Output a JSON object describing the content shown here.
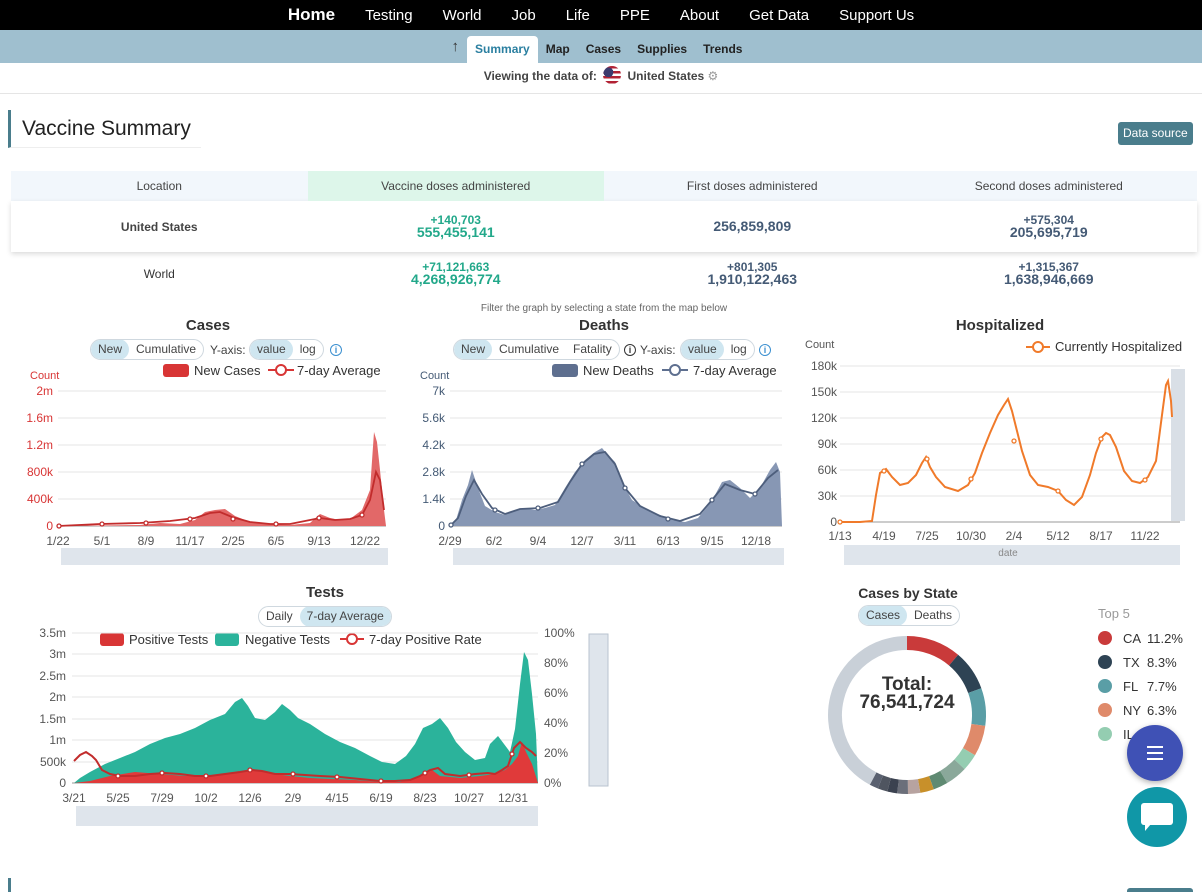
{
  "topnav": {
    "items": [
      "Home",
      "Testing",
      "World",
      "Job",
      "Life",
      "PPE",
      "About",
      "Get Data",
      "Support Us"
    ]
  },
  "subnav": {
    "tabs": [
      "Summary",
      "Map",
      "Cases",
      "Supplies",
      "Trends"
    ],
    "active": "Summary"
  },
  "viewing": {
    "label": "Viewing the data of:",
    "location": "United States"
  },
  "section": {
    "title": "Vaccine Summary",
    "data_source": "Data source"
  },
  "vaccine_table": {
    "headers": [
      "Location",
      "Vaccine doses administered",
      "First doses administered",
      "Second doses administered"
    ],
    "rows": [
      {
        "location": "United States",
        "doses_delta": "+140,703",
        "doses_total": "555,455,141",
        "first_delta": "",
        "first_total": "256,859,809",
        "second_delta": "+575,304",
        "second_total": "205,695,719"
      },
      {
        "location": "World",
        "doses_delta": "+71,121,663",
        "doses_total": "4,268,926,774",
        "first_delta": "+801,305",
        "first_total": "1,910,122,463",
        "second_delta": "+1,315,367",
        "second_total": "1,638,946,669"
      }
    ]
  },
  "filter_note": "Filter the graph by selecting a state from the map below",
  "colors": {
    "cases": "#d83535",
    "deaths": "#5e6f8f",
    "hosp": "#f07a2a",
    "negative": "#2bb39b",
    "accent": "#4a7d8c"
  },
  "cases_chart": {
    "title": "Cases",
    "toggles": [
      "New",
      "Cumulative"
    ],
    "scale_label": "Y-axis:",
    "scale": [
      "value",
      "log"
    ],
    "legend": [
      "New Cases",
      "7-day Average"
    ],
    "count_label": "Count",
    "yticks": [
      "2m",
      "1.6m",
      "1.2m",
      "800k",
      "400k",
      "0"
    ],
    "xticks": [
      "1/22",
      "5/1",
      "8/9",
      "11/17",
      "2/25",
      "6/5",
      "9/13",
      "12/22"
    ]
  },
  "deaths_chart": {
    "title": "Deaths",
    "toggles": [
      "New",
      "Cumulative",
      "Fatality"
    ],
    "scale_label": "Y-axis:",
    "scale": [
      "value",
      "log"
    ],
    "legend": [
      "New Deaths",
      "7-day Average"
    ],
    "count_label": "Count",
    "yticks": [
      "7k",
      "5.6k",
      "4.2k",
      "2.8k",
      "1.4k",
      "0"
    ],
    "xticks": [
      "2/29",
      "6/2",
      "9/4",
      "12/7",
      "3/11",
      "6/13",
      "9/15",
      "12/18"
    ]
  },
  "hosp_chart": {
    "title": "Hospitalized",
    "legend": [
      "Currently Hospitalized"
    ],
    "count_label": "Count",
    "yticks": [
      "180k",
      "150k",
      "120k",
      "90k",
      "60k",
      "30k",
      "0"
    ],
    "xticks": [
      "1/13",
      "4/19",
      "7/25",
      "10/30",
      "2/4",
      "5/12",
      "8/17",
      "11/22"
    ],
    "slider_label": "date"
  },
  "tests_chart": {
    "title": "Tests",
    "toggles": [
      "Daily",
      "7-day Average"
    ],
    "legend": [
      "Positive Tests",
      "Negative Tests",
      "7-day Positive Rate"
    ],
    "yticks": [
      "3.5m",
      "3m",
      "2.5m",
      "2m",
      "1.5m",
      "1m",
      "500k",
      "0"
    ],
    "y2ticks": [
      "100%",
      "80%",
      "60%",
      "40%",
      "20%",
      "0%"
    ],
    "xticks": [
      "3/21",
      "5/25",
      "7/29",
      "10/2",
      "12/6",
      "2/9",
      "4/15",
      "6/19",
      "8/23",
      "10/27",
      "12/31"
    ]
  },
  "state_chart": {
    "title": "Cases by State",
    "toggles": [
      "Cases",
      "Deaths"
    ],
    "total_label": "Total:",
    "total_value": "76,541,724",
    "top_label": "Top 5",
    "top": [
      {
        "state": "CA",
        "pct": "11.2%",
        "color": "#c93a3a"
      },
      {
        "state": "TX",
        "pct": "8.3%",
        "color": "#2e4354"
      },
      {
        "state": "FL",
        "pct": "7.7%",
        "color": "#5a9ea6"
      },
      {
        "state": "NY",
        "pct": "6.3%",
        "color": "#df8a6a"
      },
      {
        "state": "IL",
        "pct": "",
        "color": "#94cdb1"
      }
    ]
  }
}
